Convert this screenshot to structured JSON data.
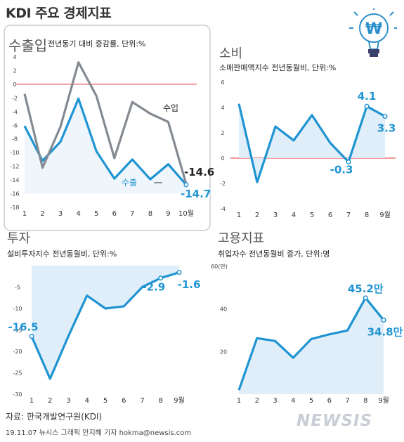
{
  "page": {
    "title": "KDI 주요 경제지표",
    "source": "자료: 한국개발연구원(KDI)",
    "credit": "19.11.07 뉴시스 그래픽 안지혜 기자 hokma@newsis.com",
    "watermark": "NEWSIS"
  },
  "colors": {
    "blue": "#1f94d2",
    "gray": "#848a91",
    "red_zero": "#e6333a",
    "area_fill": "#dcecf7",
    "panel_border": "#b8c0c8",
    "title_gray": "#555555"
  },
  "decoration": {
    "icon": "won-lightbulb-icon",
    "symbol": "₩"
  },
  "chart_data": [
    {
      "id": "export",
      "type": "line",
      "title": "수출입",
      "subtitle": "전년동기 대비 증감률, 단위:%",
      "x": [
        "1",
        "2",
        "3",
        "4",
        "5",
        "6",
        "7",
        "8",
        "9",
        "10월"
      ],
      "ylim": [
        -18,
        4
      ],
      "yticks": [
        "4",
        "2",
        "0",
        "-2",
        "-4",
        "-6",
        "-8",
        "-10",
        "-12",
        "-14",
        "-16",
        "-18"
      ],
      "series": [
        {
          "name": "수출",
          "color": "blue",
          "values": [
            -6.1,
            -11.2,
            -8.4,
            -2.1,
            -9.8,
            -13.8,
            -11.0,
            -13.9,
            -11.7,
            -14.7
          ]
        },
        {
          "name": "수입",
          "color": "gray",
          "values": [
            -1.4,
            -12.2,
            -6.2,
            3.2,
            -1.7,
            -10.8,
            -2.6,
            -4.3,
            -5.5,
            -14.6
          ]
        }
      ],
      "data_labels": {
        "수입": "-14.6",
        "수출": "-14.7"
      }
    },
    {
      "id": "consumption",
      "type": "area",
      "title": "소비",
      "subtitle": "소매판매액지수 전년동월비, 단위:%",
      "x": [
        "1",
        "2",
        "3",
        "4",
        "5",
        "6",
        "7",
        "8",
        "9월"
      ],
      "ylim": [
        -4,
        6
      ],
      "yticks": [
        "6",
        "4",
        "2",
        "0",
        "-2",
        "-4"
      ],
      "series": [
        {
          "values": [
            4.3,
            -1.9,
            2.5,
            1.4,
            3.4,
            1.2,
            -0.3,
            4.1,
            3.3
          ]
        }
      ],
      "data_labels": [
        "-0.3",
        "4.1",
        "3.3"
      ]
    },
    {
      "id": "investment",
      "type": "area",
      "title": "투자",
      "subtitle": "설비투자지수 전년동월비, 단위:%",
      "x": [
        "1",
        "2",
        "3",
        "4",
        "5",
        "6",
        "7",
        "8",
        "9월"
      ],
      "ylim": [
        -30,
        0
      ],
      "yticks": [
        "-5",
        "-10",
        "-15",
        "-20",
        "-25",
        "-30"
      ],
      "series": [
        {
          "values": [
            -16.5,
            -26.4,
            -16.4,
            -7.0,
            -10.0,
            -9.5,
            -5.0,
            -2.9,
            -1.6
          ]
        }
      ],
      "data_labels": [
        "-16.5",
        "-2.9",
        "-1.6"
      ]
    },
    {
      "id": "employment",
      "type": "area",
      "title": "고용지표",
      "subtitle": "취업자수 전년동월비 증가, 단위:명",
      "x": [
        "1",
        "2",
        "3",
        "4",
        "5",
        "6",
        "7",
        "8",
        "9월"
      ],
      "ylim": [
        0,
        60
      ],
      "yticks": [
        "60(만)",
        "40",
        "20"
      ],
      "series": [
        {
          "values": [
            1.9,
            26.3,
            25.0,
            17.1,
            25.9,
            28.1,
            29.9,
            45.2,
            34.8
          ]
        }
      ],
      "data_labels": [
        "45.2만",
        "34.8만"
      ]
    }
  ]
}
